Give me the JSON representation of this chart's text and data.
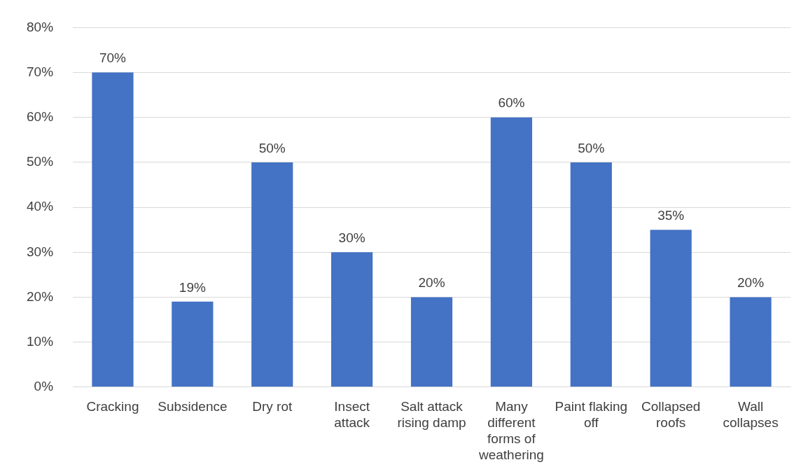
{
  "chart_data": {
    "type": "bar",
    "categories": [
      "Cracking",
      "Subsidence",
      "Dry rot",
      "Insect attack",
      "Salt attack rising damp",
      "Many different forms of weathering",
      "Paint flaking off",
      "Collapsed roofs",
      "Wall collapses"
    ],
    "values": [
      70,
      19,
      50,
      30,
      20,
      60,
      50,
      35,
      20
    ],
    "value_labels": [
      "70%",
      "19%",
      "50%",
      "30%",
      "20%",
      "60%",
      "50%",
      "35%",
      "20%"
    ],
    "color": "#4472c4",
    "ylim": [
      0,
      80
    ],
    "yticks": [
      {
        "value": 0,
        "label": "0%"
      },
      {
        "value": 10,
        "label": "10%"
      },
      {
        "value": 20,
        "label": "20%"
      },
      {
        "value": 30,
        "label": "30%"
      },
      {
        "value": 40,
        "label": "40%"
      },
      {
        "value": 50,
        "label": "50%"
      },
      {
        "value": 60,
        "label": "60%"
      },
      {
        "value": 70,
        "label": "70%"
      },
      {
        "value": 80,
        "label": "80%"
      }
    ],
    "grid": "y",
    "legend": false
  }
}
